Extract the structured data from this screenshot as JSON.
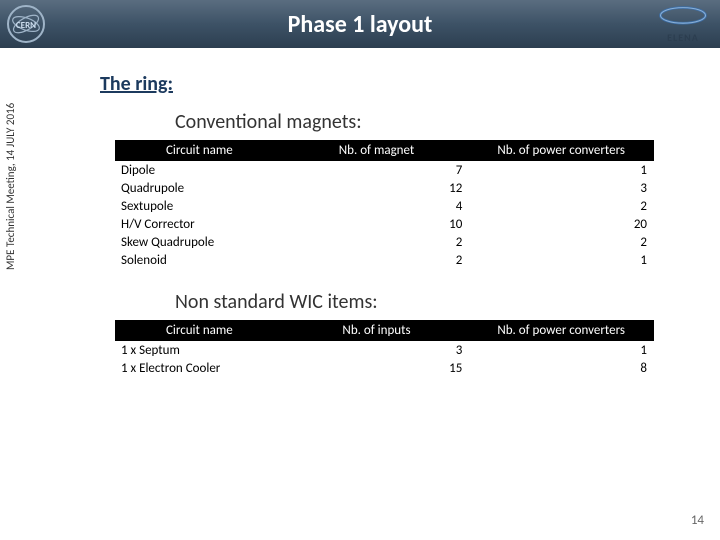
{
  "header": {
    "title": "Phase 1 layout",
    "elena_label": "ELENA"
  },
  "ring": {
    "heading": "The ring:"
  },
  "table1": {
    "title": "Conventional magnets:",
    "columns": [
      "Circuit name",
      "Nb. of magnet",
      "Nb. of power converters"
    ],
    "rows": [
      [
        "Dipole",
        7,
        1
      ],
      [
        "Quadrupole",
        12,
        3
      ],
      [
        "Sextupole",
        4,
        2
      ],
      [
        "H/V Corrector",
        10,
        20
      ],
      [
        "Skew Quadrupole",
        2,
        2
      ],
      [
        "Solenoid",
        2,
        1
      ]
    ]
  },
  "table2": {
    "title": "Non standard WIC items:",
    "columns": [
      "Circuit name",
      "Nb. of inputs",
      "Nb. of power converters"
    ],
    "rows": [
      [
        "1 x Septum",
        3,
        1
      ],
      [
        "1 x Electron Cooler",
        15,
        8
      ]
    ]
  },
  "footer": {
    "sidebar": "MPE Technical Meeting, 14 JULY 2016",
    "page": "14"
  },
  "style": {
    "header_gradient": [
      "#5a6d80",
      "#3d5266",
      "#2c3e50"
    ],
    "header_text_color": "#ffffff",
    "ring_color": "#1c3a5e",
    "th_bg": "#000000",
    "th_color": "#ffffff",
    "body_font": "Calibri",
    "title_fontsize_pt": 18,
    "section_fontsize_pt": 15,
    "table_fontsize_pt": 10
  }
}
